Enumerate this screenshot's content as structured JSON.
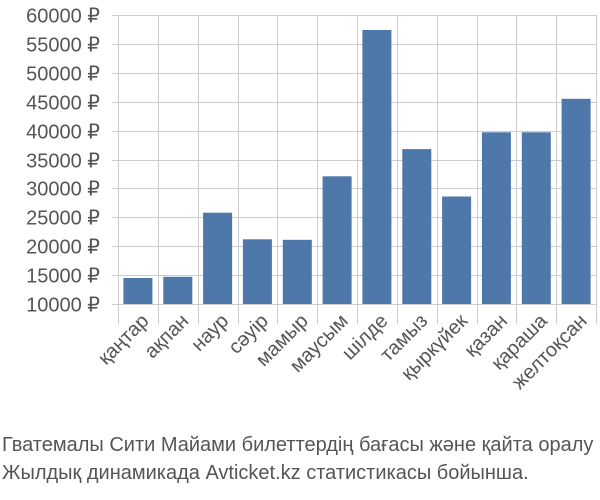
{
  "chart_data": {
    "type": "bar",
    "title": "",
    "xlabel": "",
    "ylabel": "",
    "categories": [
      "қаңтар",
      "ақпан",
      "наур",
      "сәуір",
      "мамыр",
      "маусым",
      "шілде",
      "тамыз",
      "қыркүйек",
      "қазан",
      "қараша",
      "желтоқсан"
    ],
    "values": [
      14500,
      14700,
      25800,
      21200,
      21100,
      32100,
      57400,
      36800,
      28600,
      39700,
      39700,
      45500
    ],
    "ylim": [
      10000,
      60000
    ],
    "yticks": [
      10000,
      15000,
      20000,
      25000,
      30000,
      35000,
      40000,
      45000,
      50000,
      55000,
      60000
    ],
    "ytick_labels": [
      "10000 ₽",
      "15000 ₽",
      "20000 ₽",
      "25000 ₽",
      "30000 ₽",
      "35000 ₽",
      "40000 ₽",
      "45000 ₽",
      "50000 ₽",
      "55000 ₽",
      "60000 ₽"
    ],
    "grid": true,
    "bar_color": "#4e78a9"
  },
  "caption": {
    "line1": "Гватемалы Сити Майами билеттердің бағасы және қайта оралу",
    "line2": "Жылдық динамикада Avticket.kz статистикасы бойынша."
  }
}
